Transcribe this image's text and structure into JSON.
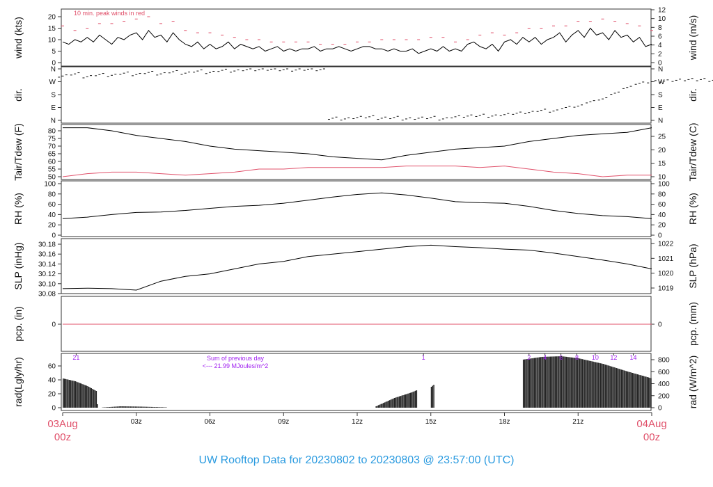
{
  "title": "UW Rooftop Data for 20230802  to  20230803 @ 23:57:00  (UTC)",
  "x_axis": {
    "start_label": [
      "03Aug",
      "00z"
    ],
    "end_label": [
      "04Aug",
      "00z"
    ],
    "ticks": [
      {
        "hour": 3,
        "label": "03z"
      },
      {
        "hour": 6,
        "label": "06z"
      },
      {
        "hour": 9,
        "label": "09z"
      },
      {
        "hour": 12,
        "label": "12z"
      },
      {
        "hour": 15,
        "label": "15z"
      },
      {
        "hour": 18,
        "label": "18z"
      },
      {
        "hour": 21,
        "label": "21z"
      }
    ],
    "range_hours": [
      0,
      24
    ]
  },
  "colors": {
    "main": "#000000",
    "secondary": "#e0506a",
    "annotation": "#a020f0",
    "title": "#2b9be0"
  },
  "chart_data": [
    {
      "type": "line",
      "ylabel": "wind (kts)",
      "ylabel_right": "wind (m/s)",
      "annotation": "10 min. peak winds in red",
      "ylim": [
        0,
        23
      ],
      "yticks": [
        "0",
        "5",
        "10",
        "15",
        "20"
      ],
      "yticks_right": [
        "0",
        "2",
        "4",
        "6",
        "8",
        "10",
        "12"
      ],
      "series": [
        {
          "role": "wind",
          "x_step_hours": 0.25,
          "values": [
            9,
            8,
            10,
            9,
            11,
            9,
            12,
            10,
            8,
            11,
            10,
            12,
            13,
            10,
            14,
            11,
            12,
            9,
            13,
            10,
            8,
            7,
            9,
            6,
            8,
            6,
            7,
            9,
            6,
            8,
            7,
            6,
            7,
            5,
            6,
            7,
            5,
            6,
            5,
            6,
            6,
            7,
            5,
            6,
            6,
            7,
            6,
            5,
            6,
            7,
            7,
            6,
            6,
            5,
            6,
            5,
            5,
            6,
            4,
            5,
            6,
            5,
            7,
            5,
            6,
            5,
            8,
            9,
            7,
            6,
            8,
            5,
            9,
            10,
            8,
            11,
            9,
            11,
            8,
            10,
            11,
            13,
            9,
            12,
            14,
            11,
            15,
            12,
            13,
            10,
            14,
            11,
            12,
            9,
            11,
            7,
            8
          ]
        },
        {
          "role": "peak_wind",
          "x_step_hours": 0.5,
          "values": [
            16,
            14,
            15,
            17,
            17,
            18,
            19,
            20,
            17,
            18,
            14,
            13,
            13,
            12,
            11,
            10,
            10,
            9,
            9,
            9,
            9,
            8,
            8,
            8,
            9,
            9,
            10,
            10,
            10,
            10,
            11,
            11,
            9,
            10,
            12,
            13,
            12,
            13,
            15,
            15,
            16,
            16,
            18,
            18,
            19,
            18,
            17,
            16,
            14
          ]
        }
      ]
    },
    {
      "type": "scatter",
      "ylabel": "dir.",
      "ylabel_right": "dir.",
      "ylim": [
        0,
        360
      ],
      "yticks": [
        "N",
        "E",
        "S",
        "W",
        "N"
      ],
      "series": [
        {
          "role": "direction_deg",
          "x_step_hours": 0.5,
          "values": [
            310,
            325,
            305,
            320,
            315,
            330,
            320,
            335,
            325,
            340,
            330,
            345,
            335,
            350,
            345,
            355,
            355,
            358,
            355,
            352,
            358,
            355,
            15,
            10,
            20,
            25,
            15,
            20,
            10,
            15,
            20,
            10,
            25,
            30,
            35,
            30,
            40,
            50,
            55,
            70,
            65,
            90,
            100,
            130,
            150,
            190,
            230,
            260,
            270,
            275,
            280,
            285,
            285,
            280,
            290,
            285,
            285,
            290,
            290,
            285,
            290,
            285,
            288,
            290,
            285,
            285,
            290,
            288,
            290,
            285
          ]
        }
      ]
    },
    {
      "type": "line",
      "ylabel": "Tair/Tdew (F)",
      "ylabel_right": "Tair/Tdew (C)",
      "ylim": [
        48,
        84
      ],
      "yticks": [
        "50",
        "55",
        "60",
        "65",
        "70",
        "75",
        "80"
      ],
      "yticks_right": [
        "10",
        "15",
        "20",
        "25"
      ],
      "series": [
        {
          "role": "air_temperature",
          "x_step_hours": 1,
          "values": [
            82,
            82,
            80,
            77,
            75,
            73,
            70,
            68,
            67,
            66,
            65,
            63,
            62,
            61,
            64,
            66,
            68,
            69,
            70,
            73,
            75,
            77,
            78,
            79,
            82
          ]
        },
        {
          "role": "dew_point",
          "x_step_hours": 1,
          "values": [
            50,
            52,
            53,
            53,
            52,
            51,
            52,
            53,
            55,
            55,
            56,
            56,
            56,
            56,
            57,
            57,
            57,
            56,
            57,
            55,
            53,
            52,
            50,
            51,
            51
          ]
        }
      ]
    },
    {
      "type": "line",
      "ylabel": "RH (%)",
      "ylabel_right": "RH (%)",
      "ylim": [
        0,
        100
      ],
      "yticks": [
        "0",
        "20",
        "40",
        "60",
        "80",
        "100"
      ],
      "series": [
        {
          "role": "relative_humidity",
          "x_step_hours": 1,
          "values": [
            32,
            35,
            40,
            44,
            45,
            48,
            52,
            56,
            58,
            62,
            68,
            74,
            79,
            82,
            78,
            72,
            65,
            63,
            62,
            56,
            48,
            42,
            38,
            36,
            32
          ]
        }
      ]
    },
    {
      "type": "line",
      "ylabel": "SLP (inHg)",
      "ylabel_right": "SLP (hPa)",
      "ylim": [
        30.08,
        30.18
      ],
      "yticks": [
        "30.08",
        "30.10",
        "30.12",
        "30.14",
        "30.16",
        "30.18"
      ],
      "yticks_right": [
        "1019",
        "1020",
        "1021",
        "1022"
      ],
      "series": [
        {
          "role": "sea_level_pressure",
          "x_step_hours": 1,
          "values": [
            30.09,
            30.091,
            30.09,
            30.087,
            30.105,
            30.115,
            30.12,
            30.13,
            30.14,
            30.145,
            30.155,
            30.16,
            30.165,
            30.17,
            30.175,
            30.178,
            30.175,
            30.173,
            30.17,
            30.168,
            30.162,
            30.155,
            30.148,
            30.14,
            30.13
          ]
        }
      ]
    },
    {
      "type": "line",
      "ylabel": "pcp. (in)",
      "ylabel_right": "pcp. (mm)",
      "yticks": [
        "0"
      ],
      "yticks_right": [
        "0"
      ],
      "series": [
        {
          "role": "precipitation",
          "x_step_hours": 24,
          "values": [
            0,
            0
          ]
        }
      ]
    },
    {
      "type": "bar",
      "ylabel": "rad(Lgly/hr)",
      "ylabel_right": "rad (W/m^2)",
      "ylim": [
        0,
        75
      ],
      "yticks": [
        "0",
        "20",
        "40",
        "60"
      ],
      "yticks_right": [
        "0",
        "200",
        "400",
        "600",
        "800"
      ],
      "annotation": [
        "Sum of previous day",
        "<--- 21.99 MJoules/m^2"
      ],
      "hour_labels": [
        {
          "hour": 0.55,
          "label": "21"
        },
        {
          "hour": 14.7,
          "label": "1"
        },
        {
          "hour": 19.0,
          "label": "2"
        },
        {
          "hour": 19.65,
          "label": "4"
        },
        {
          "hour": 20.3,
          "label": "6"
        },
        {
          "hour": 20.95,
          "label": "8"
        },
        {
          "hour": 21.7,
          "label": "10"
        },
        {
          "hour": 22.45,
          "label": "12"
        },
        {
          "hour": 23.25,
          "label": "14"
        }
      ],
      "series": [
        {
          "role": "radiation_lgly_hr",
          "points": [
            [
              0,
              42
            ],
            [
              0.5,
              38
            ],
            [
              1,
              31
            ],
            [
              1.35,
              24
            ],
            [
              1.4,
              5
            ],
            [
              1.45,
              0
            ],
            [
              2.35,
              2
            ],
            [
              3.2,
              1.5
            ],
            [
              4.2,
              0.5
            ],
            [
              4.25,
              0
            ],
            [
              12.7,
              0
            ],
            [
              12.75,
              2
            ],
            [
              13.5,
              14
            ],
            [
              14.2,
              22
            ],
            [
              14.4,
              25
            ],
            [
              14.45,
              0
            ],
            [
              14.95,
              0
            ],
            [
              15.0,
              30
            ],
            [
              15.1,
              33
            ],
            [
              15.15,
              0
            ],
            [
              18.7,
              0
            ],
            [
              18.72,
              69
            ],
            [
              19.5,
              73
            ],
            [
              20.3,
              74
            ],
            [
              21,
              71
            ],
            [
              22,
              63
            ],
            [
              23,
              52
            ],
            [
              24,
              42
            ]
          ]
        }
      ]
    }
  ]
}
